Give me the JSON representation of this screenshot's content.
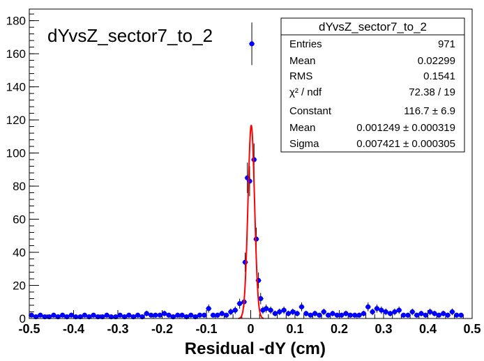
{
  "chart_data": {
    "type": "scatter",
    "title": "dYvsZ_sector7_to_2",
    "xlabel": "Residual -dY (cm)",
    "ylabel": "",
    "xlim": [
      -0.5,
      0.5
    ],
    "ylim": [
      0,
      187
    ],
    "x_ticks": [
      "-0.5",
      "-0.4",
      "-0.3",
      "-0.2",
      "-0.1",
      "0",
      "0.1",
      "0.2",
      "0.3",
      "0.4",
      "0.5"
    ],
    "y_ticks": [
      "0",
      "20",
      "40",
      "60",
      "80",
      "100",
      "120",
      "140",
      "160",
      "180"
    ],
    "grid": false,
    "colors": {
      "points": "#0000ff",
      "fit": "#ff0000",
      "frame": "#000000"
    },
    "series": [
      {
        "type": "scatter-errorbars",
        "x": [
          -0.495,
          -0.485,
          -0.475,
          -0.465,
          -0.455,
          -0.445,
          -0.435,
          -0.425,
          -0.415,
          -0.405,
          -0.395,
          -0.385,
          -0.375,
          -0.365,
          -0.355,
          -0.345,
          -0.335,
          -0.325,
          -0.315,
          -0.305,
          -0.295,
          -0.285,
          -0.275,
          -0.265,
          -0.255,
          -0.245,
          -0.235,
          -0.225,
          -0.215,
          -0.205,
          -0.195,
          -0.185,
          -0.175,
          -0.165,
          -0.155,
          -0.145,
          -0.135,
          -0.125,
          -0.115,
          -0.105,
          -0.095,
          -0.085,
          -0.075,
          -0.065,
          -0.055,
          -0.045,
          -0.035,
          -0.025,
          -0.015,
          -0.0125,
          -0.0075,
          -0.0025,
          0.0025,
          0.0075,
          0.0125,
          0.0175,
          0.0225,
          0.0275,
          0.035,
          0.045,
          0.055,
          0.065,
          0.075,
          0.085,
          0.095,
          0.105,
          0.115,
          0.125,
          0.135,
          0.145,
          0.155,
          0.165,
          0.175,
          0.185,
          0.195,
          0.205,
          0.215,
          0.225,
          0.235,
          0.245,
          0.255,
          0.265,
          0.275,
          0.285,
          0.295,
          0.305,
          0.315,
          0.325,
          0.335,
          0.345,
          0.355,
          0.365,
          0.375,
          0.385,
          0.395,
          0.405,
          0.415,
          0.425,
          0.435,
          0.445,
          0.455,
          0.465,
          0.475
        ],
        "values": [
          2,
          1,
          2,
          1,
          1,
          2,
          1,
          2,
          1,
          2,
          1,
          1,
          2,
          1,
          2,
          1,
          1,
          2,
          1,
          1,
          2,
          1,
          2,
          1,
          2,
          1,
          3,
          2,
          2,
          2,
          3,
          2,
          1,
          2,
          2,
          1,
          2,
          1,
          2,
          2,
          6,
          2,
          2,
          3,
          2,
          4,
          5,
          9,
          10,
          34,
          85,
          83,
          166,
          96,
          48,
          23,
          12,
          5,
          6,
          5,
          3,
          4,
          5,
          3,
          4,
          3,
          7,
          3,
          2,
          3,
          2,
          4,
          2,
          3,
          2,
          2,
          3,
          2,
          2,
          2,
          3,
          7,
          4,
          6,
          5,
          4,
          3,
          4,
          5,
          2,
          2,
          4,
          2,
          3,
          2,
          4,
          3,
          2,
          3,
          2,
          4,
          2,
          2
        ]
      },
      {
        "name": "gaus",
        "type": "line",
        "fit": {
          "constant": 116.7,
          "mean": 0.001249,
          "sigma": 0.007421
        }
      }
    ]
  },
  "plot_label": "dYvsZ_sector7_to_2",
  "stats_box": {
    "title": "dYvsZ_sector7_to_2",
    "rows": [
      {
        "label": "Entries",
        "value": "971"
      },
      {
        "label": "Mean",
        "value": "0.02299"
      },
      {
        "label": "RMS",
        "value": "0.1541"
      },
      {
        "label": "χ² / ndf",
        "value": "72.38 / 19"
      },
      {
        "label": "Constant",
        "value": "116.7 ± 6.9"
      },
      {
        "label": "Mean",
        "value": "0.001249 ± 0.000319"
      },
      {
        "label": "Sigma",
        "value": "0.007421 ± 0.000305"
      }
    ]
  }
}
